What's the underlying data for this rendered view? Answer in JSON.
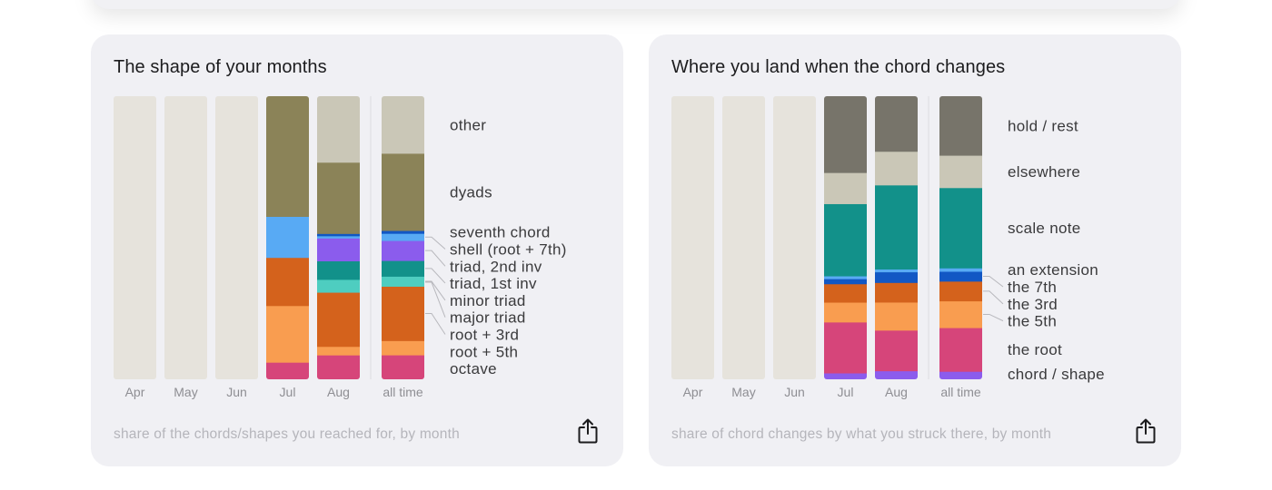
{
  "charts": [
    {
      "title": "The shape of your months",
      "caption": "share of the chords/shapes you reached for, by month",
      "share_icon": "share-icon",
      "chart_data": {
        "type": "stacked-bar",
        "categories": [
          "Apr",
          "May",
          "Jun",
          "Jul",
          "Aug",
          "all time"
        ],
        "empty_categories": [
          "Apr",
          "May",
          "Jun"
        ],
        "stack_order_bottom_to_top": [
          "octave",
          "root + 5th",
          "root + 3rd",
          "major triad",
          "minor triad",
          "triad, 1st inv",
          "triad, 2nd inv",
          "shell (root + 7th)",
          "seventh chord",
          "dyads",
          "other"
        ],
        "series": [
          {
            "name": "octave",
            "color": "#d6457a",
            "values": [
              0,
              0,
              0,
              0.06,
              0.085,
              0.085
            ]
          },
          {
            "name": "root + 5th",
            "color": "#f99d50",
            "values": [
              0,
              0,
              0,
              0.2,
              0.03,
              0.05
            ]
          },
          {
            "name": "root + 3rd",
            "color": "#d4621c",
            "values": [
              0,
              0,
              0,
              0.17,
              0.19,
              0.19
            ]
          },
          {
            "name": "major triad",
            "color": "#d4621c",
            "values": [
              0,
              0,
              0,
              0,
              0,
              0
            ]
          },
          {
            "name": "minor triad",
            "color": "#4ecdc0",
            "values": [
              0,
              0,
              0,
              0,
              0.045,
              0.035
            ]
          },
          {
            "name": "triad, 1st inv",
            "color": "#12918a",
            "values": [
              0,
              0,
              0,
              0,
              0.065,
              0.055
            ]
          },
          {
            "name": "triad, 2nd inv",
            "color": "#8b5ced",
            "values": [
              0,
              0,
              0,
              0,
              0.08,
              0.07
            ]
          },
          {
            "name": "shell (root + 7th)",
            "color": "#58aaf4",
            "values": [
              0,
              0,
              0,
              0.145,
              0.008,
              0.025
            ]
          },
          {
            "name": "seventh chord",
            "color": "#1257c4",
            "values": [
              0,
              0,
              0,
              0,
              0.008,
              0.01
            ]
          },
          {
            "name": "dyads",
            "color": "#8b8358",
            "values": [
              0,
              0,
              0,
              0.425,
              0.25,
              0.27
            ]
          },
          {
            "name": "other",
            "color": "#cac7b7",
            "values": [
              0,
              0,
              0,
              0,
              0.232,
              0.2
            ]
          }
        ],
        "legend": [
          "other",
          "dyads",
          "seventh chord",
          "shell (root + 7th)",
          "triad, 2nd inv",
          "triad, 1st inv",
          "minor triad",
          "major triad",
          "root + 3rd",
          "root + 5th",
          "octave"
        ]
      }
    },
    {
      "title": "Where you land when the chord changes",
      "caption": "share of chord changes by what you struck there, by month",
      "share_icon": "share-icon",
      "chart_data": {
        "type": "stacked-bar",
        "categories": [
          "Apr",
          "May",
          "Jun",
          "Jul",
          "Aug",
          "all time"
        ],
        "empty_categories": [
          "Apr",
          "May",
          "Jun"
        ],
        "stack_order_bottom_to_top": [
          "chord / shape",
          "the root",
          "the 5th",
          "the 3rd",
          "the 7th",
          "an extension",
          "scale note",
          "elsewhere",
          "hold / rest"
        ],
        "series": [
          {
            "name": "chord / shape",
            "color": "#8b5ced",
            "values": [
              0,
              0,
              0,
              0.022,
              0.03,
              0.028
            ]
          },
          {
            "name": "the root",
            "color": "#d6457a",
            "values": [
              0,
              0,
              0,
              0.18,
              0.145,
              0.155
            ]
          },
          {
            "name": "the 5th",
            "color": "#f99d50",
            "values": [
              0,
              0,
              0,
              0.07,
              0.1,
              0.095
            ]
          },
          {
            "name": "the 3rd",
            "color": "#d4621c",
            "values": [
              0,
              0,
              0,
              0.065,
              0.07,
              0.07
            ]
          },
          {
            "name": "the 7th",
            "color": "#1257c4",
            "values": [
              0,
              0,
              0,
              0.018,
              0.038,
              0.035
            ]
          },
          {
            "name": "an extension",
            "color": "#58aaf4",
            "values": [
              0,
              0,
              0,
              0.01,
              0.01,
              0.012
            ]
          },
          {
            "name": "scale note",
            "color": "#12918a",
            "values": [
              0,
              0,
              0,
              0.255,
              0.3,
              0.285
            ]
          },
          {
            "name": "elsewhere",
            "color": "#cac7b7",
            "values": [
              0,
              0,
              0,
              0.11,
              0.12,
              0.115
            ]
          },
          {
            "name": "hold / rest",
            "color": "#77746a",
            "values": [
              0,
              0,
              0,
              0.27,
              0.197,
              0.21
            ]
          }
        ],
        "legend": [
          "hold / rest",
          "elsewhere",
          "scale note",
          "an extension",
          "the 7th",
          "the 3rd",
          "the 5th",
          "the root",
          "chord / shape"
        ]
      }
    }
  ],
  "colors": {
    "card_bg": "#f0f0f4",
    "empty_bar": "#e6e3dc",
    "label_text": "#3a3a3c",
    "axis_text": "#8e8e93",
    "caption_text": "#b5b5bb"
  }
}
